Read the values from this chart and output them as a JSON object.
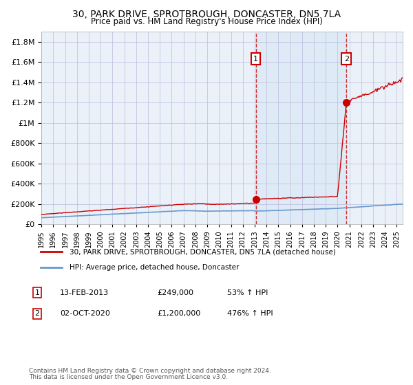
{
  "title1": "30, PARK DRIVE, SPROTBROUGH, DONCASTER, DN5 7LA",
  "title2": "Price paid vs. HM Land Registry's House Price Index (HPI)",
  "legend_line1": "30, PARK DRIVE, SPROTBROUGH, DONCASTER, DN5 7LA (detached house)",
  "legend_line2": "HPI: Average price, detached house, Doncaster",
  "annotation1_label": "1",
  "annotation1_date": "13-FEB-2013",
  "annotation1_price": "£249,000",
  "annotation1_pct": "53% ↑ HPI",
  "annotation2_label": "2",
  "annotation2_date": "02-OCT-2020",
  "annotation2_price": "£1,200,000",
  "annotation2_pct": "476% ↑ HPI",
  "footnote1": "Contains HM Land Registry data © Crown copyright and database right 2024.",
  "footnote2": "This data is licensed under the Open Government Licence v3.0.",
  "hpi_color": "#6699cc",
  "price_color": "#cc0000",
  "sale1_year": 2013.1,
  "sale1_price": 249000,
  "sale2_year": 2020.75,
  "sale2_price": 1200000,
  "ylim_max": 1900000
}
